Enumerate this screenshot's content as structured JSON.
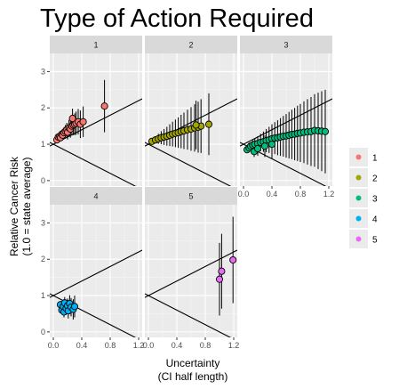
{
  "chart_data": {
    "type": "scatter",
    "title": "Type of Action Required",
    "xlabel": [
      "Uncertainty",
      "(CI half length)"
    ],
    "ylabel": [
      "Relative Cancer Risk",
      "(1.0 = state average)"
    ],
    "xlim": [
      -0.05,
      1.25
    ],
    "ylim": [
      -0.15,
      3.5
    ],
    "x_ticks": [
      "0.0",
      "0.4",
      "0.8",
      "1.2"
    ],
    "y_ticks": [
      "0",
      "1",
      "2",
      "3"
    ],
    "grid": true,
    "legend_position": "right",
    "reference_lines": [
      {
        "intercept": 1,
        "slope": 1
      },
      {
        "intercept": 1,
        "slope": -1
      }
    ],
    "facets": [
      {
        "label": "1",
        "color": "#F8766D",
        "points": [
          {
            "x": 0.05,
            "y": 1.12
          },
          {
            "x": 0.07,
            "y": 1.2
          },
          {
            "x": 0.09,
            "y": 1.22
          },
          {
            "x": 0.1,
            "y": 1.18
          },
          {
            "x": 0.12,
            "y": 1.28
          },
          {
            "x": 0.13,
            "y": 1.25
          },
          {
            "x": 0.15,
            "y": 1.32
          },
          {
            "x": 0.17,
            "y": 1.36
          },
          {
            "x": 0.19,
            "y": 1.4
          },
          {
            "x": 0.2,
            "y": 1.33
          },
          {
            "x": 0.22,
            "y": 1.45
          },
          {
            "x": 0.24,
            "y": 1.42
          },
          {
            "x": 0.26,
            "y": 1.5
          },
          {
            "x": 0.28,
            "y": 1.53
          },
          {
            "x": 0.3,
            "y": 1.55
          },
          {
            "x": 0.32,
            "y": 1.58
          },
          {
            "x": 0.35,
            "y": 1.62
          },
          {
            "x": 0.38,
            "y": 1.55
          },
          {
            "x": 0.27,
            "y": 1.71
          },
          {
            "x": 0.42,
            "y": 1.62
          },
          {
            "x": 0.72,
            "y": 2.05
          }
        ]
      },
      {
        "label": "2",
        "color": "#A3A500",
        "points": [
          {
            "x": 0.05,
            "y": 1.08
          },
          {
            "x": 0.1,
            "y": 1.12
          },
          {
            "x": 0.14,
            "y": 1.15
          },
          {
            "x": 0.18,
            "y": 1.18
          },
          {
            "x": 0.22,
            "y": 1.2
          },
          {
            "x": 0.26,
            "y": 1.22
          },
          {
            "x": 0.3,
            "y": 1.25
          },
          {
            "x": 0.34,
            "y": 1.28
          },
          {
            "x": 0.38,
            "y": 1.3
          },
          {
            "x": 0.42,
            "y": 1.32
          },
          {
            "x": 0.46,
            "y": 1.35
          },
          {
            "x": 0.5,
            "y": 1.37
          },
          {
            "x": 0.55,
            "y": 1.4
          },
          {
            "x": 0.6,
            "y": 1.42
          },
          {
            "x": 0.65,
            "y": 1.45
          },
          {
            "x": 0.7,
            "y": 1.47
          },
          {
            "x": 0.74,
            "y": 1.5
          },
          {
            "x": 0.67,
            "y": 1.53
          },
          {
            "x": 0.85,
            "y": 1.55
          }
        ]
      },
      {
        "label": "3",
        "color": "#00BF7D",
        "points": [
          {
            "x": 0.05,
            "y": 0.85
          },
          {
            "x": 0.08,
            "y": 0.9
          },
          {
            "x": 0.1,
            "y": 0.95
          },
          {
            "x": 0.13,
            "y": 0.98
          },
          {
            "x": 0.16,
            "y": 1.0
          },
          {
            "x": 0.2,
            "y": 1.02
          },
          {
            "x": 0.24,
            "y": 1.05
          },
          {
            "x": 0.28,
            "y": 1.07
          },
          {
            "x": 0.32,
            "y": 1.1
          },
          {
            "x": 0.36,
            "y": 1.12
          },
          {
            "x": 0.4,
            "y": 1.15
          },
          {
            "x": 0.44,
            "y": 1.17
          },
          {
            "x": 0.48,
            "y": 1.18
          },
          {
            "x": 0.52,
            "y": 1.2
          },
          {
            "x": 0.56,
            "y": 1.22
          },
          {
            "x": 0.6,
            "y": 1.23
          },
          {
            "x": 0.64,
            "y": 1.25
          },
          {
            "x": 0.68,
            "y": 1.27
          },
          {
            "x": 0.72,
            "y": 1.28
          },
          {
            "x": 0.76,
            "y": 1.3
          },
          {
            "x": 0.8,
            "y": 1.31
          },
          {
            "x": 0.85,
            "y": 1.33
          },
          {
            "x": 0.9,
            "y": 1.34
          },
          {
            "x": 0.95,
            "y": 1.35
          },
          {
            "x": 1.0,
            "y": 1.38
          },
          {
            "x": 1.05,
            "y": 1.37
          },
          {
            "x": 1.1,
            "y": 1.36
          },
          {
            "x": 1.15,
            "y": 1.35
          },
          {
            "x": 0.15,
            "y": 0.8
          },
          {
            "x": 0.2,
            "y": 0.88
          },
          {
            "x": 0.3,
            "y": 0.95
          },
          {
            "x": 0.4,
            "y": 1.0
          }
        ]
      },
      {
        "label": "4",
        "color": "#00B0F6",
        "points": [
          {
            "x": 0.1,
            "y": 0.75
          },
          {
            "x": 0.12,
            "y": 0.6
          },
          {
            "x": 0.14,
            "y": 0.7
          },
          {
            "x": 0.15,
            "y": 0.55
          },
          {
            "x": 0.16,
            "y": 0.8
          },
          {
            "x": 0.18,
            "y": 0.65
          },
          {
            "x": 0.2,
            "y": 0.72
          },
          {
            "x": 0.21,
            "y": 0.58
          },
          {
            "x": 0.23,
            "y": 0.78
          },
          {
            "x": 0.25,
            "y": 0.68
          },
          {
            "x": 0.28,
            "y": 0.62
          },
          {
            "x": 0.3,
            "y": 0.7
          }
        ]
      },
      {
        "label": "5",
        "color": "#E76BF3",
        "points": [
          {
            "x": 1.0,
            "y": 1.45
          },
          {
            "x": 1.03,
            "y": 1.67
          },
          {
            "x": 1.19,
            "y": 1.98
          }
        ]
      }
    ],
    "legend": [
      "1",
      "2",
      "3",
      "4",
      "5"
    ]
  }
}
